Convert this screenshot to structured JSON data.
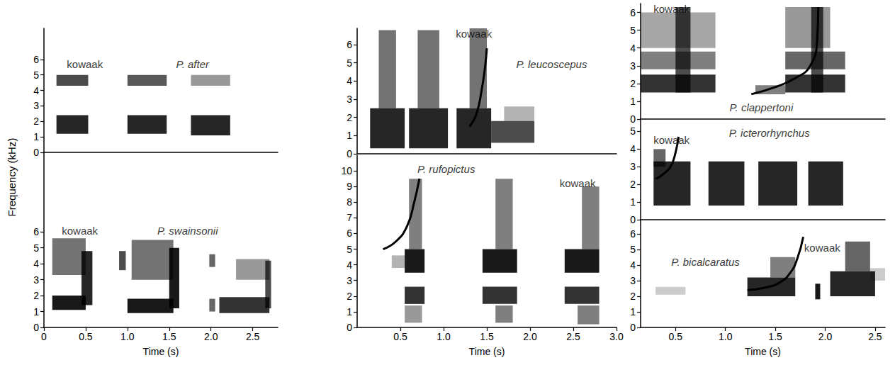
{
  "chart_data": {
    "type": "spectrogram",
    "ylabel": "Frequency (kHz)",
    "color": "#000000",
    "panels": [
      {
        "title": {
          "text": "P. after",
          "x": 1.78,
          "y": 5.7
        },
        "annotations": [
          {
            "text": "kowaak",
            "x": 0.49,
            "y": 5.7
          }
        ],
        "xlim": [
          0,
          2.8
        ],
        "ylim": [
          0,
          8
        ],
        "yticks": [
          0,
          1,
          2,
          3,
          4,
          5,
          6
        ],
        "tick_labels": "y",
        "bands": [
          {
            "t0": 0.15,
            "t1": 0.53,
            "f0": 1.2,
            "f1": 2.4,
            "level": 0.85
          },
          {
            "t0": 0.15,
            "t1": 0.53,
            "f0": 4.3,
            "f1": 5.0,
            "level": 0.7
          },
          {
            "t0": 1.0,
            "t1": 1.47,
            "f0": 1.2,
            "f1": 2.4,
            "level": 0.85
          },
          {
            "t0": 1.0,
            "t1": 1.47,
            "f0": 4.3,
            "f1": 5.0,
            "level": 0.65
          },
          {
            "t0": 1.76,
            "t1": 2.23,
            "f0": 1.1,
            "f1": 2.4,
            "level": 0.85
          },
          {
            "t0": 1.76,
            "t1": 2.23,
            "f0": 4.3,
            "f1": 5.0,
            "level": 0.4
          }
        ],
        "traces": []
      },
      {
        "title": {
          "text": "P. swainsonii",
          "x": 1.72,
          "y": 6.1
        },
        "annotations": [
          {
            "text": "kowaak",
            "x": 0.43,
            "y": 6.1
          }
        ],
        "xlabel": "Time (s)",
        "xlim": [
          0,
          2.8
        ],
        "ylim": [
          0,
          11
        ],
        "xticks": [
          0,
          0.5,
          {
            "value": 1,
            "label": "1.0"
          },
          1.5,
          {
            "value": 2,
            "label": "2.0"
          },
          2.5
        ],
        "yticks": [
          0,
          1,
          2,
          3,
          4,
          5,
          6
        ],
        "bands": [
          {
            "t0": 0.1,
            "t1": 0.5,
            "f0": 1.1,
            "f1": 2.0,
            "level": 0.9
          },
          {
            "t0": 0.1,
            "t1": 0.5,
            "f0": 3.3,
            "f1": 5.6,
            "level": 0.55
          },
          {
            "t0": 0.45,
            "t1": 0.58,
            "f0": 1.4,
            "f1": 4.8,
            "level": 0.85
          },
          {
            "t0": 0.9,
            "t1": 0.98,
            "f0": 3.6,
            "f1": 4.8,
            "level": 0.7
          },
          {
            "t0": 1.0,
            "t1": 1.55,
            "f0": 0.9,
            "f1": 1.8,
            "level": 0.9
          },
          {
            "t0": 1.05,
            "t1": 1.55,
            "f0": 3.0,
            "f1": 5.5,
            "level": 0.55
          },
          {
            "t0": 1.5,
            "t1": 1.62,
            "f0": 1.2,
            "f1": 5.0,
            "level": 0.9
          },
          {
            "t0": 1.98,
            "t1": 2.05,
            "f0": 3.8,
            "f1": 4.6,
            "level": 0.6
          },
          {
            "t0": 1.98,
            "t1": 2.05,
            "f0": 1.0,
            "f1": 1.8,
            "level": 0.6
          },
          {
            "t0": 2.1,
            "t1": 2.7,
            "f0": 0.9,
            "f1": 1.9,
            "level": 0.8
          },
          {
            "t0": 2.3,
            "t1": 2.7,
            "f0": 3.0,
            "f1": 4.3,
            "level": 0.4
          },
          {
            "t0": 2.65,
            "t1": 2.72,
            "f0": 1.2,
            "f1": 4.2,
            "level": 0.7
          }
        ],
        "traces": []
      },
      {
        "title": {
          "text": "P. leucoscepus",
          "x": 2.25,
          "y": 4.95
        },
        "annotations": [
          {
            "text": "kowaak",
            "x": 1.35,
            "y": 6.6
          }
        ],
        "xlim": [
          0,
          3.0
        ],
        "ylim": [
          0,
          6.9
        ],
        "yticks": [
          0,
          1,
          2,
          3,
          4,
          5,
          6
        ],
        "tick_labels": "y",
        "bands": [
          {
            "t0": 0.15,
            "t1": 0.55,
            "f0": 0.3,
            "f1": 2.5,
            "level": 0.85
          },
          {
            "t0": 0.25,
            "t1": 0.45,
            "f0": 2.5,
            "f1": 6.8,
            "level": 0.55
          },
          {
            "t0": 0.6,
            "t1": 1.05,
            "f0": 0.3,
            "f1": 2.5,
            "level": 0.85
          },
          {
            "t0": 0.7,
            "t1": 0.95,
            "f0": 2.5,
            "f1": 6.8,
            "level": 0.55
          },
          {
            "t0": 1.15,
            "t1": 1.55,
            "f0": 0.3,
            "f1": 2.5,
            "level": 0.85
          },
          {
            "t0": 1.3,
            "t1": 1.5,
            "f0": 2.5,
            "f1": 6.9,
            "level": 0.55
          },
          {
            "t0": 1.55,
            "t1": 2.05,
            "f0": 0.6,
            "f1": 1.8,
            "level": 0.7
          },
          {
            "t0": 1.7,
            "t1": 2.05,
            "f0": 1.8,
            "f1": 2.6,
            "level": 0.3
          }
        ],
        "traces": [
          {
            "t": [
              1.3,
              1.38,
              1.44,
              1.48,
              1.5
            ],
            "f": [
              1.5,
              2.2,
              3.5,
              4.8,
              5.8
            ]
          }
        ]
      },
      {
        "title": {
          "text": "P. rufopictus",
          "x": 1.03,
          "y": 10.1
        },
        "annotations": [
          {
            "text": "kowaak",
            "x": 2.55,
            "y": 9.2
          }
        ],
        "xlabel": "Time (s)",
        "xlim": [
          0,
          3.0
        ],
        "ylim": [
          0,
          11
        ],
        "xticks": [
          0.5,
          {
            "value": 1,
            "label": "1.0"
          },
          1.5,
          {
            "value": 2,
            "label": "2.0"
          },
          2.5,
          {
            "value": 3,
            "label": "3.0"
          }
        ],
        "yticks": [
          0,
          1,
          2,
          3,
          4,
          5,
          6,
          7,
          8,
          9,
          10
        ],
        "bands": [
          {
            "t0": 0.55,
            "t1": 0.78,
            "f0": 3.5,
            "f1": 5.0,
            "level": 0.9
          },
          {
            "t0": 0.55,
            "t1": 0.78,
            "f0": 1.5,
            "f1": 2.6,
            "level": 0.8
          },
          {
            "t0": 0.6,
            "t1": 0.75,
            "f0": 5.0,
            "f1": 9.5,
            "level": 0.5
          },
          {
            "t0": 0.55,
            "t1": 0.75,
            "f0": 0.3,
            "f1": 1.4,
            "level": 0.4
          },
          {
            "t0": 0.4,
            "t1": 0.55,
            "f0": 3.8,
            "f1": 4.6,
            "level": 0.3
          },
          {
            "t0": 1.45,
            "t1": 1.85,
            "f0": 3.5,
            "f1": 5.0,
            "level": 0.9
          },
          {
            "t0": 1.45,
            "t1": 1.85,
            "f0": 1.5,
            "f1": 2.6,
            "level": 0.8
          },
          {
            "t0": 1.6,
            "t1": 1.8,
            "f0": 5.0,
            "f1": 9.5,
            "level": 0.5
          },
          {
            "t0": 1.6,
            "t1": 1.8,
            "f0": 0.3,
            "f1": 1.4,
            "level": 0.5
          },
          {
            "t0": 2.4,
            "t1": 2.8,
            "f0": 3.5,
            "f1": 5.0,
            "level": 0.9
          },
          {
            "t0": 2.4,
            "t1": 2.8,
            "f0": 1.5,
            "f1": 2.6,
            "level": 0.8
          },
          {
            "t0": 2.6,
            "t1": 2.8,
            "f0": 5.0,
            "f1": 9.0,
            "level": 0.5
          },
          {
            "t0": 2.55,
            "t1": 2.8,
            "f0": 0.2,
            "f1": 1.4,
            "level": 0.5
          }
        ],
        "traces": [
          {
            "t": [
              0.3,
              0.45,
              0.58,
              0.66,
              0.72
            ],
            "f": [
              5.0,
              5.5,
              6.5,
              8.0,
              9.5
            ]
          }
        ]
      },
      {
        "title": {
          "text": "P. clappertoni",
          "x": 1.36,
          "y": 0.64
        },
        "annotations": [
          {
            "text": "kowaak",
            "x": 0.46,
            "y": 6.2
          }
        ],
        "xlim": [
          0.15,
          2.6
        ],
        "ylim": [
          0,
          6.5
        ],
        "yticks": [
          0,
          1,
          2,
          3,
          4,
          5,
          6
        ],
        "tick_labels": "y",
        "bands": [
          {
            "t0": 0.15,
            "t1": 0.9,
            "f0": 1.5,
            "f1": 2.5,
            "level": 0.8
          },
          {
            "t0": 0.15,
            "t1": 0.9,
            "f0": 2.8,
            "f1": 3.8,
            "level": 0.5
          },
          {
            "t0": 0.15,
            "t1": 0.9,
            "f0": 4.0,
            "f1": 6.0,
            "level": 0.35
          },
          {
            "t0": 0.5,
            "t1": 0.65,
            "f0": 1.5,
            "f1": 6.3,
            "level": 0.7
          },
          {
            "t0": 1.3,
            "t1": 1.6,
            "f0": 1.4,
            "f1": 1.9,
            "level": 0.5
          },
          {
            "t0": 1.6,
            "t1": 2.2,
            "f0": 1.5,
            "f1": 2.5,
            "level": 0.8
          },
          {
            "t0": 1.6,
            "t1": 2.2,
            "f0": 2.8,
            "f1": 3.8,
            "level": 0.6
          },
          {
            "t0": 1.6,
            "t1": 2.05,
            "f0": 4.0,
            "f1": 6.3,
            "level": 0.4
          },
          {
            "t0": 1.86,
            "t1": 1.98,
            "f0": 1.5,
            "f1": 6.3,
            "level": 0.7
          }
        ],
        "traces": [
          {
            "t": [
              1.26,
              1.5,
              1.7,
              1.85,
              1.92,
              1.93
            ],
            "f": [
              1.4,
              1.8,
              2.3,
              3.0,
              4.5,
              6.3
            ]
          }
        ]
      },
      {
        "title": {
          "text": "P. icterorhynchus",
          "x": 1.44,
          "y": 4.9
        },
        "annotations": [
          {
            "text": "kowaak",
            "x": 0.46,
            "y": 4.5
          }
        ],
        "xlim": [
          0.15,
          2.6
        ],
        "ylim": [
          0,
          5.7
        ],
        "yticks": [
          0,
          1,
          2,
          3,
          4,
          5
        ],
        "tick_labels": "y",
        "bands": [
          {
            "t0": 0.28,
            "t1": 0.65,
            "f0": 0.8,
            "f1": 3.3,
            "level": 0.85
          },
          {
            "t0": 0.28,
            "t1": 0.4,
            "f0": 3.0,
            "f1": 4.0,
            "level": 0.6
          },
          {
            "t0": 0.83,
            "t1": 1.19,
            "f0": 0.8,
            "f1": 3.3,
            "level": 0.85
          },
          {
            "t0": 1.33,
            "t1": 1.72,
            "f0": 0.8,
            "f1": 3.3,
            "level": 0.85
          },
          {
            "t0": 1.83,
            "t1": 2.18,
            "f0": 0.8,
            "f1": 3.3,
            "level": 0.85
          }
        ],
        "traces": [
          {
            "t": [
              0.3,
              0.38,
              0.45,
              0.5,
              0.53
            ],
            "f": [
              2.3,
              2.6,
              3.0,
              3.8,
              4.7
            ]
          }
        ]
      },
      {
        "title": {
          "text": "P. bicalcaratus",
          "x": 0.8,
          "y": 4.2
        },
        "annotations": [
          {
            "text": "kowaak",
            "x": 1.97,
            "y": 5.1
          }
        ],
        "xlabel": "Time (s)",
        "xlim": [
          0.15,
          2.6
        ],
        "ylim": [
          0,
          6.9
        ],
        "xticks": [
          0.5,
          {
            "value": 1,
            "label": "1.0"
          },
          1.5,
          {
            "value": 2,
            "label": "2.0"
          },
          2.5
        ],
        "yticks": [
          0,
          1,
          2,
          3,
          4,
          5,
          6
        ],
        "bands": [
          {
            "t0": 0.3,
            "t1": 0.6,
            "f0": 2.1,
            "f1": 2.6,
            "level": 0.2
          },
          {
            "t0": 1.22,
            "t1": 1.7,
            "f0": 2.0,
            "f1": 3.2,
            "level": 0.85
          },
          {
            "t0": 1.45,
            "t1": 1.7,
            "f0": 3.2,
            "f1": 4.5,
            "level": 0.5
          },
          {
            "t0": 1.9,
            "t1": 1.95,
            "f0": 1.8,
            "f1": 2.8,
            "level": 0.9
          },
          {
            "t0": 2.05,
            "t1": 2.5,
            "f0": 2.0,
            "f1": 3.6,
            "level": 0.85
          },
          {
            "t0": 2.2,
            "t1": 2.45,
            "f0": 3.6,
            "f1": 5.5,
            "level": 0.6
          },
          {
            "t0": 2.45,
            "t1": 2.6,
            "f0": 3.0,
            "f1": 3.8,
            "level": 0.2
          }
        ],
        "traces": [
          {
            "t": [
              1.22,
              1.4,
              1.55,
              1.65,
              1.72,
              1.78
            ],
            "f": [
              2.4,
              2.55,
              2.9,
              3.5,
              4.4,
              5.8
            ]
          }
        ]
      }
    ]
  }
}
